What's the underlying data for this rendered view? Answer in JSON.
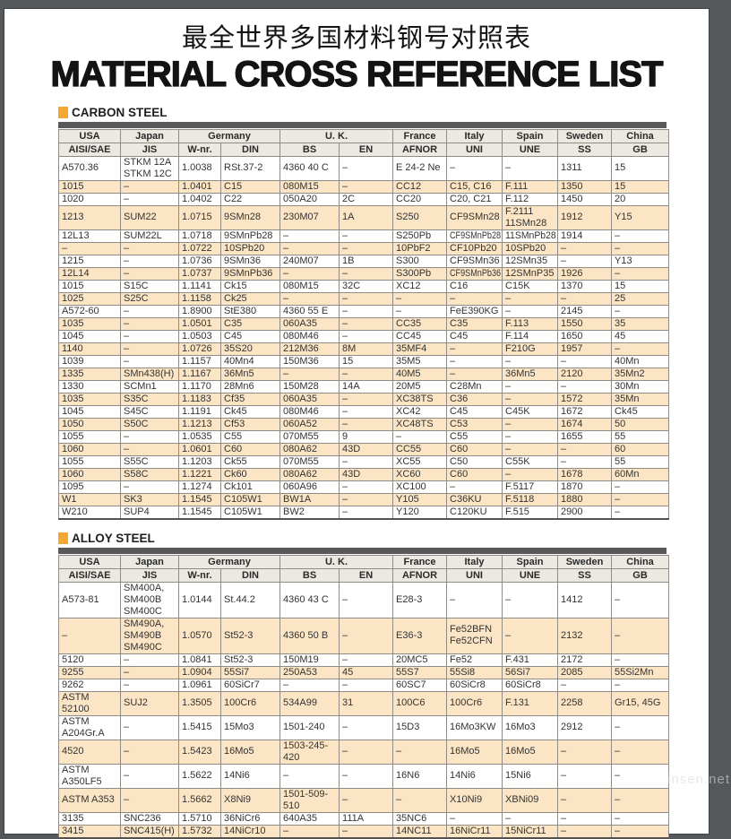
{
  "viewer": {
    "background_color": "#54585B",
    "watermark": "insen.net"
  },
  "document": {
    "title_zh": "最全世界多国材料钢号对照表",
    "title_en": "MATERIAL CROSS REFERENCE LIST",
    "accent_color": "#F5A733",
    "row_highlight_color": "#FBE5C5",
    "header_bg_color": "#EBE9E2",
    "bar_color": "#595959",
    "columns": {
      "countries": [
        {
          "label": "USA",
          "span": 1
        },
        {
          "label": "Japan",
          "span": 1
        },
        {
          "label": "Germany",
          "span": 2
        },
        {
          "label": "U. K.",
          "span": 2
        },
        {
          "label": "France",
          "span": 1
        },
        {
          "label": "Italy",
          "span": 1
        },
        {
          "label": "Spain",
          "span": 1
        },
        {
          "label": "Sweden",
          "span": 1
        },
        {
          "label": "China",
          "span": 1
        }
      ],
      "standards": [
        "AISI/SAE",
        "JIS",
        "W-nr.",
        "DIN",
        "BS",
        "EN",
        "AFNOR",
        "UNI",
        "UNE",
        "SS",
        "GB"
      ]
    },
    "sections": [
      {
        "title": "CARBON STEEL",
        "rows": [
          {
            "hl": false,
            "cells": [
              "A570.36",
              "STKM 12A\nSTKM 12C",
              "1.0038",
              "RSt.37-2",
              "4360 40 C",
              "–",
              "E 24-2 Ne",
              "–",
              "–",
              "1311",
              "15"
            ]
          },
          {
            "hl": true,
            "cells": [
              "1015",
              "–",
              "1.0401",
              "C15",
              "080M15",
              "–",
              "CC12",
              "C15, C16",
              "F.111",
              "1350",
              "15"
            ]
          },
          {
            "hl": false,
            "cells": [
              "1020",
              "–",
              "1.0402",
              "C22",
              "050A20",
              "2C",
              "CC20",
              "C20, C21",
              "F.112",
              "1450",
              "20"
            ]
          },
          {
            "hl": true,
            "cells": [
              "1213",
              "SUM22",
              "1.0715",
              "9SMn28",
              "230M07",
              "1A",
              "S250",
              "CF9SMn28",
              "F.2111\n11SMn28",
              "1912",
              "Y15"
            ]
          },
          {
            "hl": false,
            "cells": [
              "12L13",
              "SUM22L",
              "1.0718",
              "9SMnPb28",
              "–",
              "–",
              "S250Pb",
              "CF9SMnPb28",
              "11SMnPb28",
              "1914",
              "–"
            ]
          },
          {
            "hl": true,
            "cells": [
              "–",
              "–",
              "1.0722",
              "10SPb20",
              "–",
              "–",
              "10PbF2",
              "CF10Pb20",
              "10SPb20",
              "–",
              "–"
            ]
          },
          {
            "hl": false,
            "cells": [
              "1215",
              "–",
              "1.0736",
              "9SMn36",
              "240M07",
              "1B",
              "S300",
              "CF9SMn36",
              "12SMn35",
              "–",
              "Y13"
            ]
          },
          {
            "hl": true,
            "cells": [
              "12L14",
              "–",
              "1.0737",
              "9SMnPb36",
              "–",
              "–",
              "S300Pb",
              "CF9SMnPb36",
              "12SMnP35",
              "1926",
              "–"
            ]
          },
          {
            "hl": false,
            "cells": [
              "1015",
              "S15C",
              "1.1141",
              "Ck15",
              "080M15",
              "32C",
              "XC12",
              "C16",
              "C15K",
              "1370",
              "15"
            ]
          },
          {
            "hl": true,
            "cells": [
              "1025",
              "S25C",
              "1.1158",
              "Ck25",
              "–",
              "–",
              "–",
              "–",
              "–",
              "–",
              "25"
            ]
          },
          {
            "hl": false,
            "cells": [
              "A572-60",
              "–",
              "1.8900",
              "StE380",
              "4360 55 E",
              "–",
              "–",
              "FeE390KG",
              "–",
              "2145",
              "–"
            ]
          },
          {
            "hl": true,
            "cells": [
              "1035",
              "–",
              "1.0501",
              "C35",
              "060A35",
              "–",
              "CC35",
              "C35",
              "F.113",
              "1550",
              "35"
            ]
          },
          {
            "hl": false,
            "cells": [
              "1045",
              "–",
              "1.0503",
              "C45",
              "080M46",
              "–",
              "CC45",
              "C45",
              "F.114",
              "1650",
              "45"
            ]
          },
          {
            "hl": true,
            "cells": [
              "1140",
              "–",
              "1.0726",
              "35S20",
              "212M36",
              "8M",
              "35MF4",
              "–",
              "F210G",
              "1957",
              "–"
            ]
          },
          {
            "hl": false,
            "cells": [
              "1039",
              "–",
              "1.1157",
              "40Mn4",
              "150M36",
              "15",
              "35M5",
              "–",
              "–",
              "–",
              "40Mn"
            ]
          },
          {
            "hl": true,
            "cells": [
              "1335",
              "SMn438(H)",
              "1.1167",
              "36Mn5",
              "–",
              "–",
              "40M5",
              "–",
              "36Mn5",
              "2120",
              "35Mn2"
            ]
          },
          {
            "hl": false,
            "cells": [
              "1330",
              "SCMn1",
              "1.1170",
              "28Mn6",
              "150M28",
              "14A",
              "20M5",
              "C28Mn",
              "–",
              "–",
              "30Mn"
            ]
          },
          {
            "hl": true,
            "cells": [
              "1035",
              "S35C",
              "1.1183",
              "Cf35",
              "060A35",
              "–",
              "XC38TS",
              "C36",
              "–",
              "1572",
              "35Mn"
            ]
          },
          {
            "hl": false,
            "cells": [
              "1045",
              "S45C",
              "1.1191",
              "Ck45",
              "080M46",
              "–",
              "XC42",
              "C45",
              "C45K",
              "1672",
              "Ck45"
            ]
          },
          {
            "hl": true,
            "cells": [
              "1050",
              "S50C",
              "1.1213",
              "Cf53",
              "060A52",
              "–",
              "XC48TS",
              "C53",
              "–",
              "1674",
              "50"
            ]
          },
          {
            "hl": false,
            "cells": [
              "1055",
              "–",
              "1.0535",
              "C55",
              "070M55",
              "9",
              "–",
              "C55",
              "–",
              "1655",
              "55"
            ]
          },
          {
            "hl": true,
            "cells": [
              "1060",
              "–",
              "1.0601",
              "C60",
              "080A62",
              "43D",
              "CC55",
              "C60",
              "–",
              "–",
              "60"
            ]
          },
          {
            "hl": false,
            "cells": [
              "1055",
              "S55C",
              "1.1203",
              "Ck55",
              "070M55",
              "–",
              "XC55",
              "C50",
              "C55K",
              "–",
              "55"
            ]
          },
          {
            "hl": true,
            "cells": [
              "1060",
              "S58C",
              "1.1221",
              "Ck60",
              "080A62",
              "43D",
              "XC60",
              "C60",
              "–",
              "1678",
              "60Mn"
            ]
          },
          {
            "hl": false,
            "cells": [
              "1095",
              "–",
              "1.1274",
              "Ck101",
              "060A96",
              "–",
              "XC100",
              "–",
              "F.5117",
              "1870",
              "–"
            ]
          },
          {
            "hl": true,
            "cells": [
              "W1",
              "SK3",
              "1.1545",
              "C105W1",
              "BW1A",
              "–",
              "Y105",
              "C36KU",
              "F.5118",
              "1880",
              "–"
            ]
          },
          {
            "hl": false,
            "cells": [
              "W210",
              "SUP4",
              "1.1545",
              "C105W1",
              "BW2",
              "–",
              "Y120",
              "C120KU",
              "F.515",
              "2900",
              "–"
            ]
          }
        ]
      },
      {
        "title": "ALLOY STEEL",
        "rows": [
          {
            "hl": false,
            "cells": [
              "A573-81",
              "SM400A, SM400B\nSM400C",
              "1.0144",
              "St.44.2",
              "4360 43 C",
              "–",
              "E28-3",
              "–",
              "–",
              "1412",
              "–"
            ]
          },
          {
            "hl": true,
            "cells": [
              "–",
              "SM490A, SM490B\nSM490C",
              "1.0570",
              "St52-3",
              "4360 50 B",
              "–",
              "E36-3",
              "Fe52BFN\nFe52CFN",
              "–",
              "2132",
              "–"
            ]
          },
          {
            "hl": false,
            "cells": [
              "5120",
              "–",
              "1.0841",
              "St52-3",
              "150M19",
              "–",
              "20MC5",
              "Fe52",
              "F.431",
              "2172",
              "–"
            ]
          },
          {
            "hl": true,
            "cells": [
              "9255",
              "–",
              "1.0904",
              "55Si7",
              "250A53",
              "45",
              "55S7",
              "55Si8",
              "56Si7",
              "2085",
              "55Si2Mn"
            ]
          },
          {
            "hl": false,
            "cells": [
              "9262",
              "–",
              "1.0961",
              "60SiCr7",
              "–",
              "–",
              "60SC7",
              "60SiCr8",
              "60SiCr8",
              "–",
              "–"
            ]
          },
          {
            "hl": true,
            "cells": [
              "ASTM 52100",
              "SUJ2",
              "1.3505",
              "100Cr6",
              "534A99",
              "31",
              "100C6",
              "100Cr6",
              "F.131",
              "2258",
              "Gr15, 45G"
            ]
          },
          {
            "hl": false,
            "cells": [
              "ASTM A204Gr.A",
              "–",
              "1.5415",
              "15Mo3",
              "1501-240",
              "–",
              "15D3",
              "16Mo3KW",
              "16Mo3",
              "2912",
              "–"
            ]
          },
          {
            "hl": true,
            "cells": [
              "4520",
              "–",
              "1.5423",
              "16Mo5",
              "1503-245-420",
              "–",
              "–",
              "16Mo5",
              "16Mo5",
              "–",
              "–"
            ]
          },
          {
            "hl": false,
            "cells": [
              "ASTM A350LF5",
              "–",
              "1.5622",
              "14Ni6",
              "–",
              "–",
              "16N6",
              "14Ni6",
              "15Ni6",
              "–",
              "–"
            ]
          },
          {
            "hl": true,
            "cells": [
              "ASTM A353",
              "–",
              "1.5662",
              "X8Ni9",
              "1501-509-510",
              "–",
              "–",
              "X10Ni9",
              "XBNi09",
              "–",
              "–"
            ]
          },
          {
            "hl": false,
            "cells": [
              "3135",
              "SNC236",
              "1.5710",
              "36NiCr6",
              "640A35",
              "111A",
              "35NC6",
              "–",
              "–",
              "–",
              "–"
            ]
          },
          {
            "hl": true,
            "cells": [
              "3415",
              "SNC415(H)",
              "1.5732",
              "14NiCr10",
              "–",
              "–",
              "14NC11",
              "16NiCr11",
              "15NiCr11",
              "–",
              "–"
            ]
          }
        ]
      }
    ]
  }
}
